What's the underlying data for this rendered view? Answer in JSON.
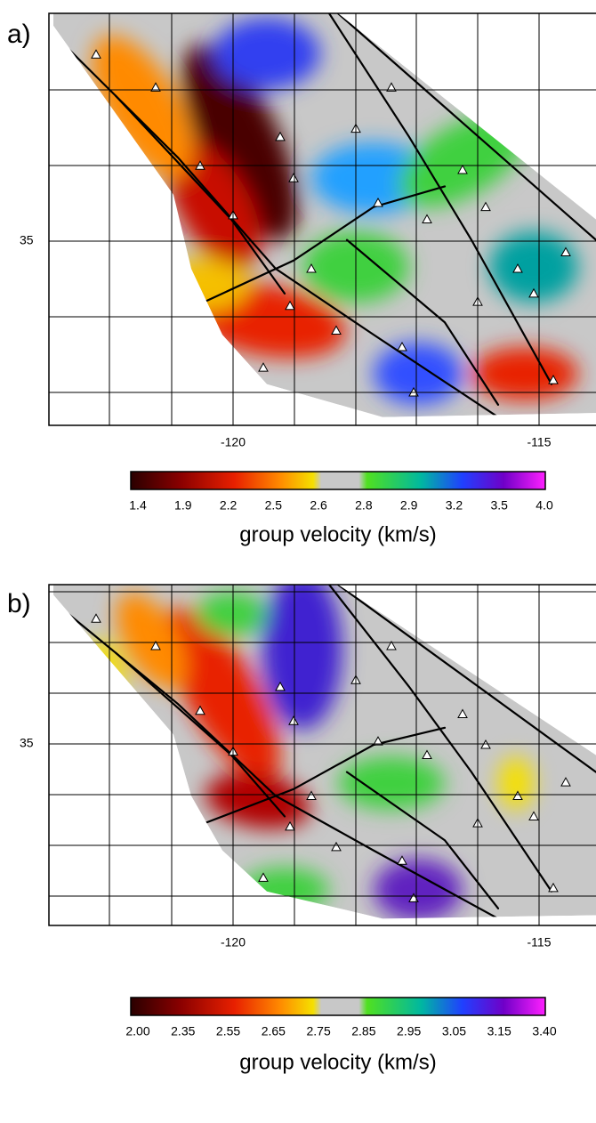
{
  "panels": [
    {
      "label": "a)",
      "yticks": [
        "35"
      ],
      "xticks": [
        "-120",
        "-115"
      ],
      "colorbar": {
        "ticks": [
          "1.4",
          "1.9",
          "2.2",
          "2.5",
          "2.6",
          "2.8",
          "2.9",
          "3.2",
          "3.5",
          "4.0"
        ],
        "label": "group velocity (km/s)"
      }
    },
    {
      "label": "b)",
      "yticks": [
        "35"
      ],
      "xticks": [
        "-120",
        "-115"
      ],
      "colorbar": {
        "ticks": [
          "2.00",
          "2.35",
          "2.55",
          "2.65",
          "2.75",
          "2.85",
          "2.95",
          "3.05",
          "3.15",
          "3.40"
        ],
        "label": "group velocity (km/s)"
      }
    }
  ]
}
